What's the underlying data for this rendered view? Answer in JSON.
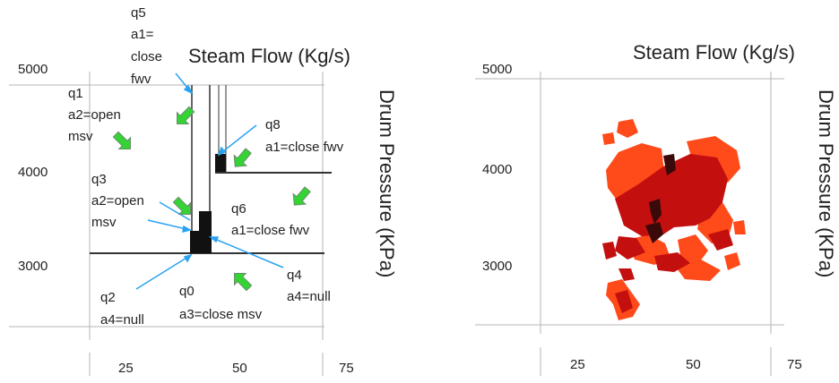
{
  "left_panel": {
    "title": "Steam Flow (Kg/s)",
    "y_axis_label": "Drum Pressure (KPa)",
    "y_ticks": [
      "5000",
      "4000",
      "3000"
    ],
    "x_ticks": [
      "25",
      "50",
      "75"
    ],
    "annotations": {
      "q5": [
        "q5",
        "a1=",
        "close",
        "fwv"
      ],
      "q1": [
        "q1",
        "a2=open",
        "msv"
      ],
      "q8": [
        "q8",
        "a1=close fwv"
      ],
      "q3": [
        "q3",
        "a2=open",
        "msv"
      ],
      "q6": [
        "q6",
        "a1=close fwv"
      ],
      "q4": [
        "q4",
        "a4=null"
      ],
      "q2": [
        "q2",
        "a4=null"
      ],
      "q0": [
        "q0",
        "a3=close msv"
      ]
    }
  },
  "right_panel": {
    "title": "Steam Flow (Kg/s)",
    "y_axis_label": "Drum Pressure (KPa)",
    "y_ticks": [
      "5000",
      "4000",
      "3000"
    ],
    "x_ticks": [
      "25",
      "50",
      "75"
    ],
    "colors": {
      "dark": "#3a0a0a",
      "mid": "#c40f0f",
      "light": "#ff4a1a"
    }
  },
  "colors": {
    "arrow_green": "#33d433",
    "arrow_green_outline": "#6c8c6c",
    "pointer_blue": "#29a3f0"
  }
}
